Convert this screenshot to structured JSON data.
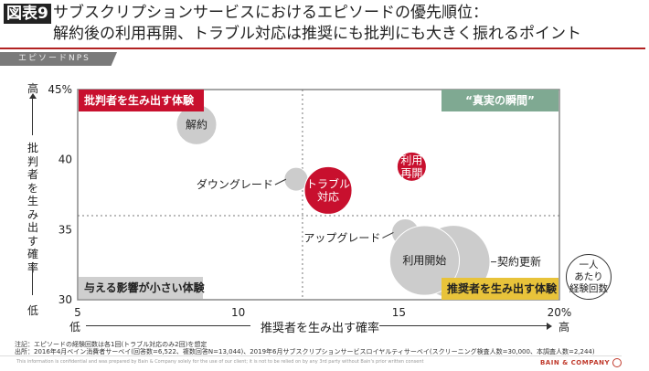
{
  "header": {
    "badge": "図表9",
    "title_line1": "サブスクリプションサービスにおけるエピソードの優先順位：",
    "title_line2": "解約後の利用再開、トラブル対応は推奨にも批判にも大きく振れるポイント",
    "section_tab": "エピソードNPS"
  },
  "colors": {
    "red": "#c8102e",
    "green": "#7fa992",
    "yellow": "#e8c33a",
    "gray_bubble": "#cccccc",
    "gray_quadrant": "#cfcfcf",
    "rule": "#b22222"
  },
  "chart_data": {
    "type": "scatter",
    "subtype": "bubble",
    "xlabel": "推奨者を生み出す確率",
    "ylabel": "批判者を生み出す確率",
    "xlim": [
      5,
      20
    ],
    "ylim": [
      30,
      45
    ],
    "x_ticks": [
      "5",
      "10",
      "15",
      "20%"
    ],
    "x_tick_values": [
      5,
      10,
      15,
      20
    ],
    "y_ticks": [
      "30",
      "35",
      "40",
      "45%"
    ],
    "y_tick_values": [
      30,
      35,
      40,
      45
    ],
    "x_low": "低",
    "x_high": "高",
    "y_low": "低",
    "y_high": "高",
    "divider_x": 12,
    "divider_y": 36,
    "bubble_size_legend": "一人あたり経験回数",
    "bubble_size_legend_lines": [
      "一人",
      "あたり",
      "経験回数"
    ],
    "quadrants": {
      "top_left": "批判者を生み出す体験",
      "top_right": "“真実の瞬間”",
      "bottom_left": "与える影響が小さい体験",
      "bottom_right": "推奨者を生み出す体験"
    },
    "points": [
      {
        "name": "解約",
        "lines": [
          "解約"
        ],
        "x": 8.7,
        "y": 42.5,
        "size": 1.0,
        "color": "gray",
        "label_pos": "inside"
      },
      {
        "name": "ダウングレード",
        "lines": [
          "ダウングレード"
        ],
        "x": 11.8,
        "y": 38.6,
        "size": 0.35,
        "color": "gray",
        "label_pos": "left"
      },
      {
        "name": "トラブル対応",
        "lines": [
          "トラブル",
          "対応"
        ],
        "x": 12.8,
        "y": 37.8,
        "size": 1.4,
        "color": "red",
        "label_pos": "inside"
      },
      {
        "name": "利用再開",
        "lines": [
          "利用",
          "再開"
        ],
        "x": 15.4,
        "y": 39.5,
        "size": 0.53,
        "color": "red",
        "label_pos": "inside"
      },
      {
        "name": "アップグレード",
        "lines": [
          "アップグレード"
        ],
        "x": 15.2,
        "y": 34.8,
        "size": 0.46,
        "color": "gray",
        "label_pos": "left"
      },
      {
        "name": "契約更新",
        "lines": [
          "契約更新"
        ],
        "x": 16.7,
        "y": 32.7,
        "size": 3.3,
        "color": "gray",
        "label_pos": "right"
      },
      {
        "name": "利用開始",
        "lines": [
          "利用開始"
        ],
        "x": 15.8,
        "y": 32.8,
        "size": 3.0,
        "color": "gray",
        "label_pos": "inside"
      }
    ]
  },
  "notes": {
    "note": "注記：エピソードの経験回数は各1回(トラブル対応のみ2回)を想定",
    "source": "出所：2016年4月ベイン消費者サーベイ(回答数=6,522、複数回答N=13,044)、2019年6月サブスクリプションサービスロイヤルティサーベイ(スクリーニング検査人数=30,000、本調査人数=2,244)"
  },
  "footer": {
    "disclaimer": "This information is confidential and was prepared by Bain & Company solely for the use of our client; it is not to be relied on by any 3rd party without Bain's prior written consent",
    "brand": "BAIN & COMPANY"
  }
}
